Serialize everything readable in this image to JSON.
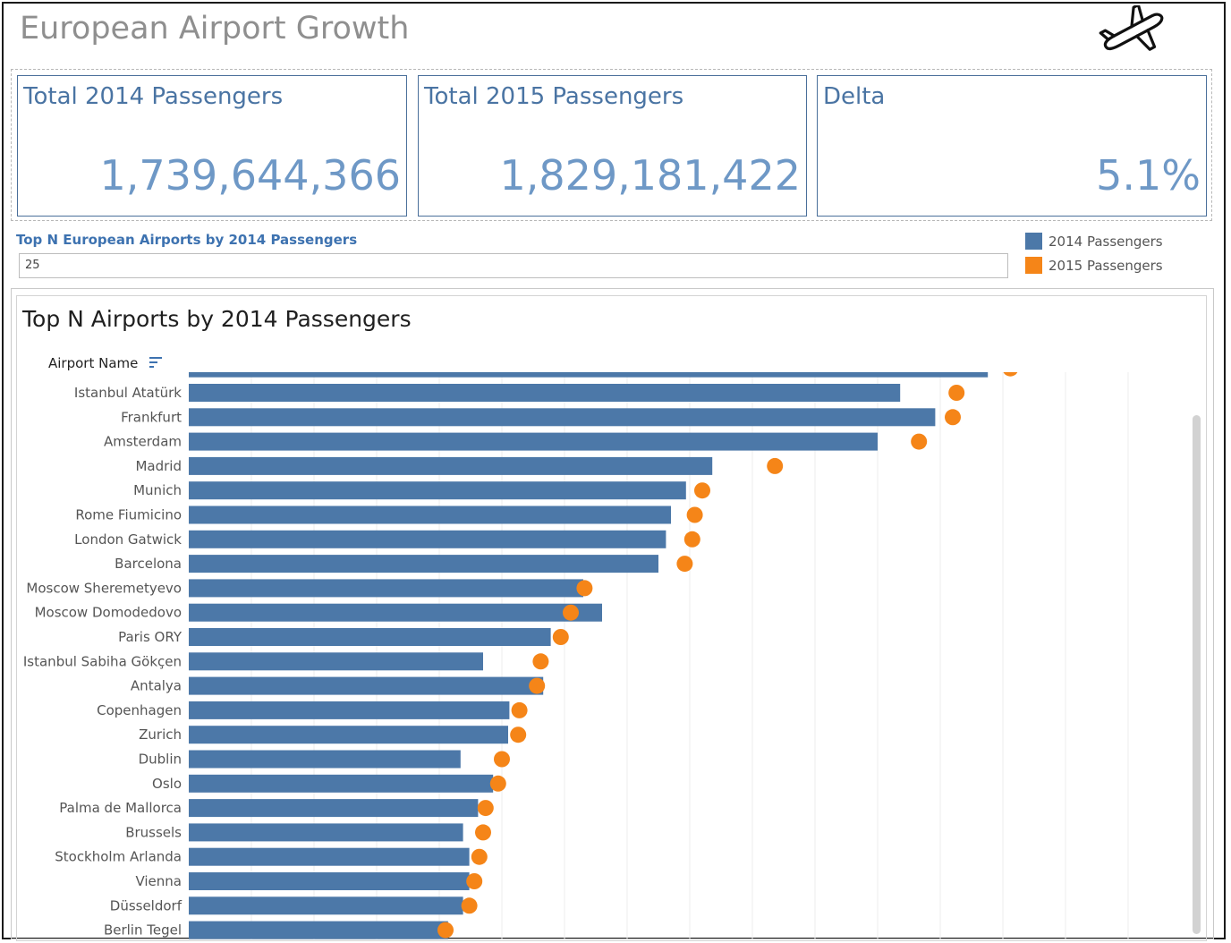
{
  "dashboard": {
    "title": "European Airport Growth",
    "icon": "airplane-icon"
  },
  "kpis": [
    {
      "label": "Total 2014 Passengers",
      "value": "1,739,644,366"
    },
    {
      "label": "Total 2015 Passengers",
      "value": "1,829,181,422"
    },
    {
      "label": "Delta",
      "value": "5.1%"
    }
  ],
  "parameter": {
    "label": "Top N European Airports by 2014 Passengers",
    "value": "25"
  },
  "legend": [
    {
      "name": "2014 Passengers",
      "color": "#4c78a8"
    },
    {
      "name": "2015 Passengers",
      "color": "#f58518"
    }
  ],
  "chart_data": {
    "type": "bar",
    "title": "Top N Airports by 2014 Passengers",
    "category_axis_title": "Airport Name",
    "categories": [
      "Istanbul Atatürk",
      "Frankfurt",
      "Amsterdam",
      "Madrid",
      "Munich",
      "Rome Fiumicino",
      "London Gatwick",
      "Barcelona",
      "Moscow Sheremetyevo",
      "Moscow Domodedovo",
      "Paris ORY",
      "Istanbul Sabiha Gökçen",
      "Antalya",
      "Copenhagen",
      "Zurich",
      "Dublin",
      "Oslo",
      "Palma de Mallorca",
      "Brussels",
      "Stockholm Arlanda",
      "Vienna",
      "Düsseldorf",
      "Berlin Tegel"
    ],
    "series": [
      {
        "name": "2014 Passengers",
        "style": "bar",
        "values": [
          56.8,
          59.6,
          55.0,
          41.8,
          39.7,
          38.5,
          38.1,
          37.5,
          31.5,
          33.0,
          28.9,
          23.5,
          28.3,
          25.6,
          25.5,
          21.7,
          24.3,
          23.1,
          21.9,
          22.4,
          22.4,
          21.9,
          20.7
        ]
      },
      {
        "name": "2015 Passengers",
        "style": "dot",
        "values": [
          61.3,
          61.0,
          58.3,
          46.8,
          41.0,
          40.4,
          40.2,
          39.6,
          31.6,
          30.5,
          29.7,
          28.1,
          27.8,
          26.4,
          26.3,
          25.0,
          24.7,
          23.7,
          23.5,
          23.2,
          22.8,
          22.4,
          20.5
        ]
      }
    ],
    "partial_top_row": {
      "bar": 63.8,
      "dot": 65.6
    },
    "xlim": [
      0,
      80
    ],
    "grid": "vertical",
    "legend_position": "top-right"
  }
}
